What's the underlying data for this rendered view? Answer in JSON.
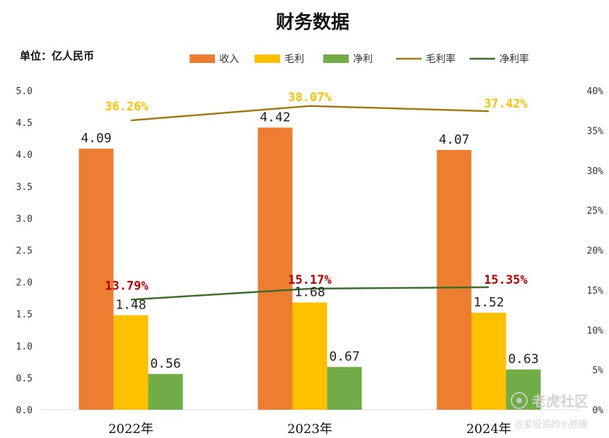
{
  "chart_data": {
    "type": "bar",
    "title": "财务数据",
    "unit_label": "单位：亿人民币",
    "categories": [
      "2022年",
      "2023年",
      "2024年"
    ],
    "series": [
      {
        "name": "收入",
        "kind": "bar",
        "color": "#ED7D31",
        "values": [
          4.09,
          4.42,
          4.07
        ],
        "labels": [
          "4.09",
          "4.42",
          "4.07"
        ]
      },
      {
        "name": "毛利",
        "kind": "bar",
        "color": "#FFC000",
        "values": [
          1.48,
          1.68,
          1.52
        ],
        "labels": [
          "1.48",
          "1.68",
          "1.52"
        ]
      },
      {
        "name": "净利",
        "kind": "bar",
        "color": "#70AD47",
        "values": [
          0.56,
          0.67,
          0.63
        ],
        "labels": [
          "0.56",
          "0.67",
          "0.63"
        ]
      },
      {
        "name": "毛利率",
        "kind": "line",
        "axis": "right",
        "color": "#9C7A14",
        "label_color": "#FFC000",
        "values": [
          36.26,
          38.07,
          37.42
        ],
        "labels": [
          "36.26%",
          "38.07%",
          "37.42%"
        ]
      },
      {
        "name": "净利率",
        "kind": "line",
        "axis": "right",
        "color": "#3B6E2A",
        "label_color": "#C00000",
        "values": [
          13.79,
          15.17,
          15.35
        ],
        "labels": [
          "13.79%",
          "15.17%",
          "15.35%"
        ]
      }
    ],
    "left_axis": {
      "ylim": [
        0,
        5
      ],
      "ticks": [
        "0.0",
        "0.5",
        "1.0",
        "1.5",
        "2.0",
        "2.5",
        "3.0",
        "3.5",
        "4.0",
        "4.5",
        "5.0"
      ]
    },
    "right_axis": {
      "ylim": [
        0,
        40
      ],
      "ticks": [
        "0%",
        "5%",
        "10%",
        "15%",
        "20%",
        "25%",
        "30%",
        "35%",
        "40%"
      ]
    },
    "legend_position": "top",
    "grid": false
  },
  "watermark": {
    "main": "老虎社区",
    "sub": "@爱投资的小熊猫"
  }
}
